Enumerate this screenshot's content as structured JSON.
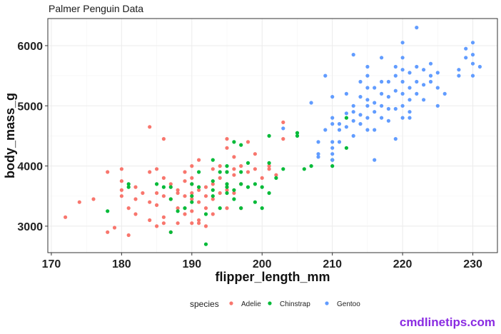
{
  "colors": {
    "Adelie": "#F8766D",
    "Chinstrap": "#00BA38",
    "Gentoo": "#619CFF",
    "grid_major": "#ebebeb",
    "grid_minor": "#f4f4f4",
    "panel_border": "#333333",
    "watermark": "#8a2be2"
  },
  "watermark": "cmdlinetips.com",
  "chart_data": {
    "type": "scatter",
    "title": "Palmer Penguin Data",
    "xlabel": "flipper_length_mm",
    "ylabel": "body_mass_g",
    "xlim": [
      169.5,
      233.5
    ],
    "ylim": [
      2560,
      6450
    ],
    "x_ticks": [
      170,
      180,
      190,
      200,
      210,
      220,
      230
    ],
    "y_ticks": [
      3000,
      4000,
      5000,
      6000
    ],
    "grid": true,
    "legend": {
      "title": "species",
      "position": "bottom"
    },
    "series": [
      {
        "name": "Adelie",
        "points": [
          [
            172,
            3150
          ],
          [
            174,
            3400
          ],
          [
            176,
            3450
          ],
          [
            178,
            3900
          ],
          [
            178,
            2900
          ],
          [
            179,
            2975
          ],
          [
            180,
            3950
          ],
          [
            180,
            3750
          ],
          [
            180,
            3600
          ],
          [
            180,
            3500
          ],
          [
            181,
            3300
          ],
          [
            181,
            2850
          ],
          [
            182,
            3200
          ],
          [
            182,
            3450
          ],
          [
            183,
            3550
          ],
          [
            184,
            3400
          ],
          [
            184,
            3900
          ],
          [
            184,
            4650
          ],
          [
            185,
            3950
          ],
          [
            185,
            3550
          ],
          [
            185,
            3350
          ],
          [
            185,
            3000
          ],
          [
            186,
            3800
          ],
          [
            186,
            4450
          ],
          [
            186,
            3500
          ],
          [
            186,
            3150
          ],
          [
            187,
            3700
          ],
          [
            187,
            3450
          ],
          [
            187,
            2900
          ],
          [
            188,
            3600
          ],
          [
            188,
            3300
          ],
          [
            188,
            3050
          ],
          [
            189,
            3900
          ],
          [
            189,
            3500
          ],
          [
            189,
            3200
          ],
          [
            189,
            3750
          ],
          [
            190,
            4000
          ],
          [
            190,
            3700
          ],
          [
            190,
            3450
          ],
          [
            190,
            3250
          ],
          [
            190,
            3050
          ],
          [
            190,
            3800
          ],
          [
            191,
            3600
          ],
          [
            191,
            3400
          ],
          [
            191,
            3100
          ],
          [
            191,
            4100
          ],
          [
            192,
            3500
          ],
          [
            192,
            3300
          ],
          [
            192,
            3000
          ],
          [
            192,
            3650
          ],
          [
            193,
            3700
          ],
          [
            193,
            3450
          ],
          [
            193,
            3200
          ],
          [
            193,
            3950
          ],
          [
            194,
            3800
          ],
          [
            194,
            4000
          ],
          [
            194,
            3550
          ],
          [
            195,
            3900
          ],
          [
            195,
            3600
          ],
          [
            195,
            3300
          ],
          [
            195,
            4300
          ],
          [
            196,
            3850
          ],
          [
            196,
            4150
          ],
          [
            196,
            3550
          ],
          [
            197,
            4000
          ],
          [
            197,
            3700
          ],
          [
            197,
            3300
          ],
          [
            198,
            3900
          ],
          [
            198,
            4400
          ],
          [
            199,
            3950
          ],
          [
            199,
            4200
          ],
          [
            200,
            3800
          ],
          [
            201,
            4000
          ],
          [
            201,
            3950
          ],
          [
            202,
            3850
          ],
          [
            203,
            4725
          ],
          [
            203,
            4450
          ],
          [
            195,
            4450
          ],
          [
            186,
            3050
          ],
          [
            182,
            3650
          ],
          [
            188,
            3550
          ],
          [
            190,
            3550
          ],
          [
            184,
            3100
          ],
          [
            196,
            3950
          ],
          [
            191,
            3050
          ]
        ]
      },
      {
        "name": "Chinstrap",
        "points": [
          [
            178,
            3250
          ],
          [
            181,
            3700
          ],
          [
            181,
            3650
          ],
          [
            185,
            3700
          ],
          [
            186,
            3650
          ],
          [
            187,
            3450
          ],
          [
            187,
            3650
          ],
          [
            187,
            2900
          ],
          [
            188,
            3250
          ],
          [
            189,
            3300
          ],
          [
            190,
            3500
          ],
          [
            190,
            3700
          ],
          [
            190,
            3400
          ],
          [
            191,
            3900
          ],
          [
            191,
            3650
          ],
          [
            192,
            3200
          ],
          [
            192,
            2700
          ],
          [
            193,
            3750
          ],
          [
            193,
            3600
          ],
          [
            193,
            3500
          ],
          [
            194,
            3900
          ],
          [
            194,
            3300
          ],
          [
            195,
            3900
          ],
          [
            195,
            4000
          ],
          [
            195,
            3700
          ],
          [
            195,
            3550
          ],
          [
            196,
            4400
          ],
          [
            196,
            3600
          ],
          [
            196,
            3450
          ],
          [
            197,
            3900
          ],
          [
            197,
            3700
          ],
          [
            197,
            3300
          ],
          [
            197,
            4350
          ],
          [
            198,
            4050
          ],
          [
            198,
            3650
          ],
          [
            199,
            3700
          ],
          [
            199,
            3400
          ],
          [
            200,
            3650
          ],
          [
            200,
            3300
          ],
          [
            201,
            4050
          ],
          [
            201,
            3550
          ],
          [
            201,
            4500
          ],
          [
            202,
            3800
          ],
          [
            203,
            3950
          ],
          [
            205,
            4550
          ],
          [
            205,
            4500
          ],
          [
            206,
            3950
          ],
          [
            207,
            4000
          ],
          [
            210,
            4100
          ],
          [
            210,
            4000
          ],
          [
            212,
            4300
          ],
          [
            212,
            4800
          ],
          [
            193,
            4100
          ],
          [
            195,
            3650
          ]
        ]
      },
      {
        "name": "Gentoo",
        "points": [
          [
            203,
            4625
          ],
          [
            207,
            5050
          ],
          [
            208,
            4400
          ],
          [
            208,
            4200
          ],
          [
            208,
            4150
          ],
          [
            209,
            4600
          ],
          [
            209,
            5500
          ],
          [
            210,
            4700
          ],
          [
            210,
            4400
          ],
          [
            210,
            4300
          ],
          [
            210,
            4200
          ],
          [
            210,
            4100
          ],
          [
            210,
            4800
          ],
          [
            210,
            5150
          ],
          [
            211,
            4600
          ],
          [
            211,
            4700
          ],
          [
            211,
            4400
          ],
          [
            212,
            4650
          ],
          [
            212,
            4875
          ],
          [
            212,
            5200
          ],
          [
            213,
            4500
          ],
          [
            213,
            4750
          ],
          [
            213,
            4900
          ],
          [
            213,
            5850
          ],
          [
            214,
            4850
          ],
          [
            214,
            5150
          ],
          [
            214,
            5400
          ],
          [
            214,
            4700
          ],
          [
            215,
            4600
          ],
          [
            215,
            4800
          ],
          [
            215,
            5000
          ],
          [
            215,
            5100
          ],
          [
            215,
            5300
          ],
          [
            215,
            5500
          ],
          [
            215,
            5650
          ],
          [
            216,
            4900
          ],
          [
            216,
            5050
          ],
          [
            216,
            5300
          ],
          [
            216,
            4100
          ],
          [
            217,
            4800
          ],
          [
            217,
            5000
          ],
          [
            217,
            5200
          ],
          [
            217,
            5400
          ],
          [
            217,
            5800
          ],
          [
            218,
            4750
          ],
          [
            218,
            4950
          ],
          [
            218,
            5150
          ],
          [
            218,
            5400
          ],
          [
            219,
            4950
          ],
          [
            219,
            5250
          ],
          [
            219,
            5500
          ],
          [
            219,
            5650
          ],
          [
            220,
            4800
          ],
          [
            220,
            5000
          ],
          [
            220,
            5200
          ],
          [
            220,
            5400
          ],
          [
            220,
            5600
          ],
          [
            220,
            5800
          ],
          [
            220,
            6050
          ],
          [
            221,
            4900
          ],
          [
            221,
            5100
          ],
          [
            221,
            5300
          ],
          [
            221,
            5550
          ],
          [
            222,
            5200
          ],
          [
            222,
            5400
          ],
          [
            222,
            5650
          ],
          [
            222,
            6300
          ],
          [
            223,
            5100
          ],
          [
            223,
            5350
          ],
          [
            223,
            5600
          ],
          [
            224,
            5500
          ],
          [
            224,
            5700
          ],
          [
            225,
            5300
          ],
          [
            225,
            5550
          ],
          [
            226,
            5200
          ],
          [
            228,
            5500
          ],
          [
            228,
            5600
          ],
          [
            229,
            5800
          ],
          [
            229,
            5950
          ],
          [
            230,
            5700
          ],
          [
            230,
            5500
          ],
          [
            230,
            5850
          ],
          [
            230,
            6050
          ],
          [
            231,
            5650
          ],
          [
            219,
            4450
          ],
          [
            216,
            4600
          ],
          [
            213,
            5000
          ],
          [
            221,
            4800
          ],
          [
            225,
            5000
          ],
          [
            224,
            5400
          ]
        ]
      }
    ]
  }
}
